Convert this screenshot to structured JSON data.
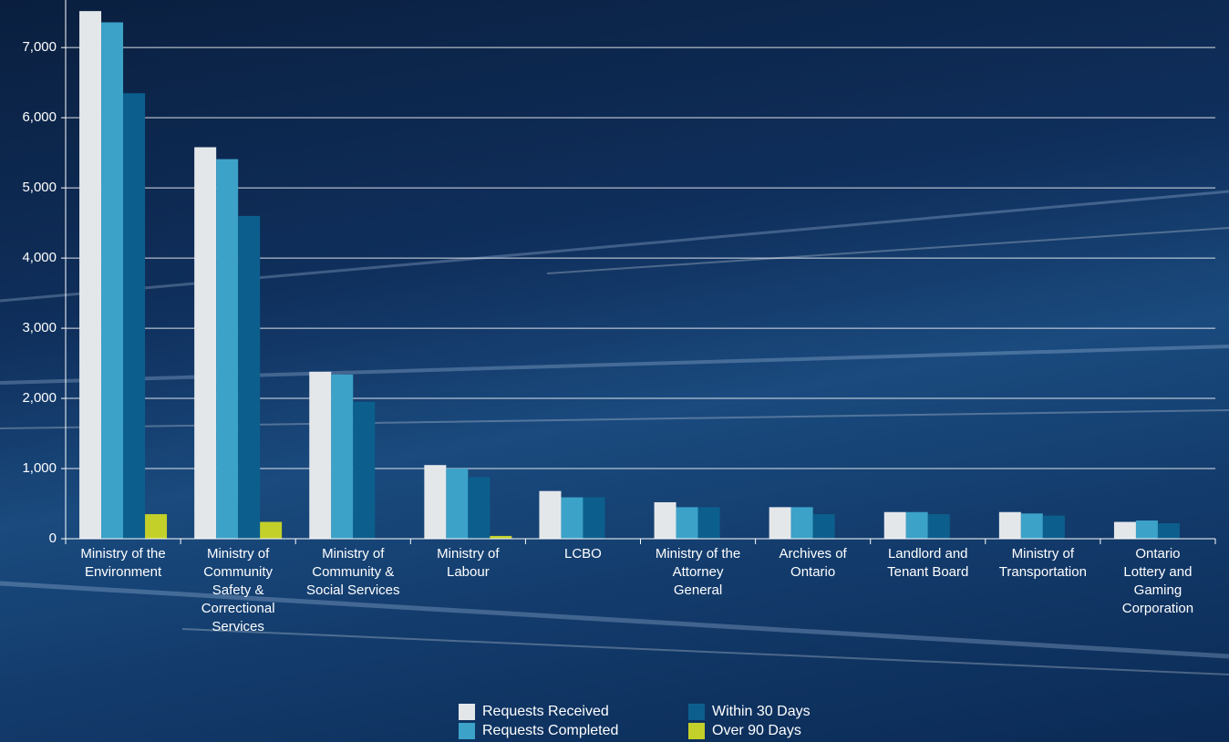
{
  "chart_data": {
    "type": "bar",
    "categories": [
      "Ministry of the\nEnvironment",
      "Ministry of\nCommunity\nSafety &\nCorrectional\nServices",
      "Ministry of\nCommunity &\nSocial Services",
      "Ministry of\nLabour",
      "LCBO",
      "Ministry of the\nAttorney\nGeneral",
      "Archives of\nOntario",
      "Landlord and\nTenant Board",
      "Ministry of\nTransportation",
      "Ontario\nLottery and\nGaming\nCorporation"
    ],
    "series": [
      {
        "name": "Requests Received",
        "color": "#e4e7ea",
        "values": [
          7520,
          5580,
          2380,
          1050,
          680,
          520,
          450,
          380,
          380,
          240
        ]
      },
      {
        "name": "Requests Completed",
        "color": "#3ca2c8",
        "values": [
          7360,
          5410,
          2340,
          1000,
          590,
          450,
          450,
          380,
          360,
          260
        ]
      },
      {
        "name": "Within 30 Days",
        "color": "#0c5f8d",
        "values": [
          6350,
          4600,
          1950,
          880,
          590,
          450,
          350,
          350,
          330,
          220
        ]
      },
      {
        "name": "Over 90 Days",
        "color": "#c4d02a",
        "values": [
          350,
          240,
          0,
          40,
          0,
          0,
          0,
          0,
          0,
          0
        ]
      }
    ],
    "ylim": [
      0,
      7600
    ],
    "yticks": [
      0,
      {
        "value": 1000,
        "label": "1,000"
      },
      {
        "value": 2000,
        "label": "2,000"
      },
      {
        "value": 3000,
        "label": "3,000"
      },
      {
        "value": 4000,
        "label": "4,000"
      },
      {
        "value": 5000,
        "label": "5,000"
      },
      {
        "value": 6000,
        "label": "6,000"
      },
      {
        "value": 7000,
        "label": "7,000"
      }
    ],
    "grid": true
  }
}
